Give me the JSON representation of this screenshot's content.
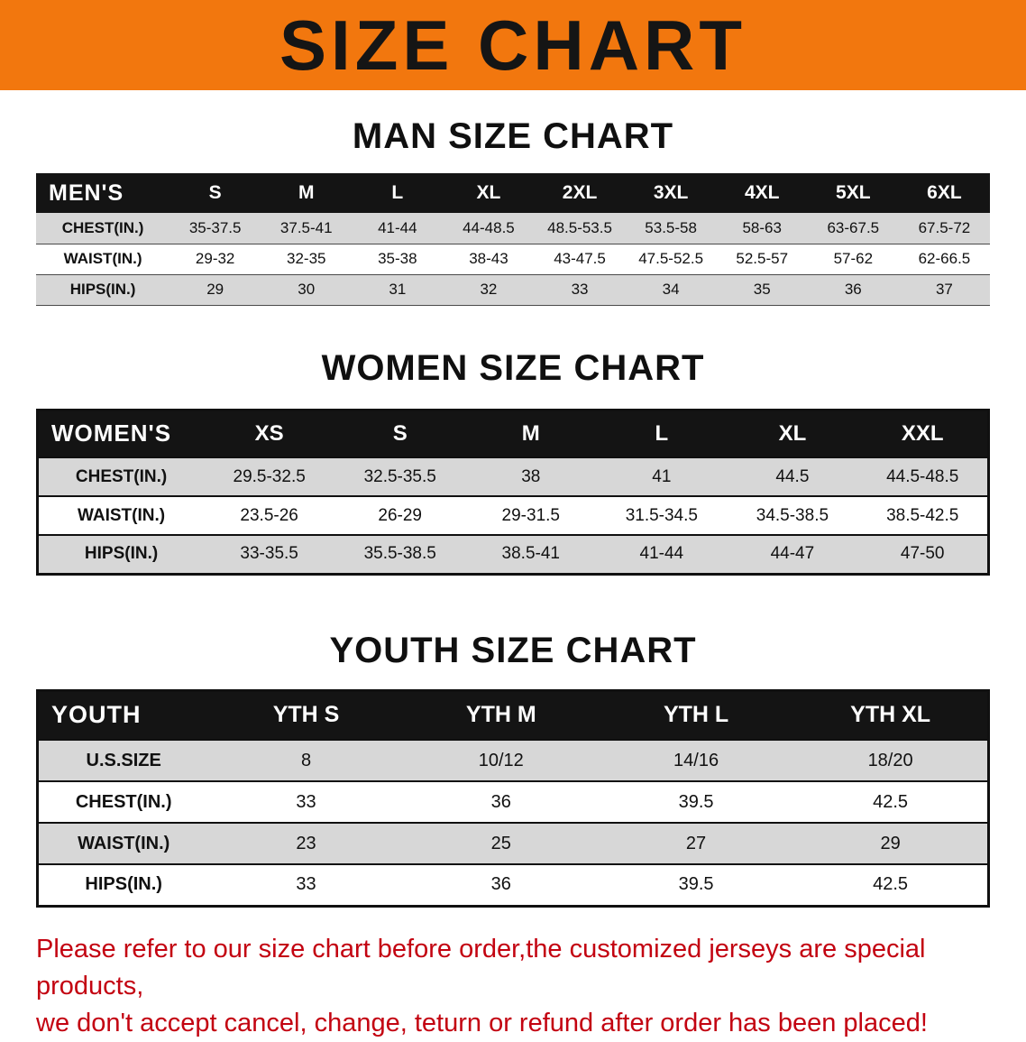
{
  "title": "SIZE CHART",
  "sections": [
    {
      "id": "men",
      "heading": "MAN SIZE CHART",
      "table": {
        "header": [
          "MEN'S",
          "S",
          "M",
          "L",
          "XL",
          "2XL",
          "3XL",
          "4XL",
          "5XL",
          "6XL"
        ],
        "rows": [
          [
            "CHEST(IN.)",
            "35-37.5",
            "37.5-41",
            "41-44",
            "44-48.5",
            "48.5-53.5",
            "53.5-58",
            "58-63",
            "63-67.5",
            "67.5-72"
          ],
          [
            "WAIST(IN.)",
            "29-32",
            "32-35",
            "35-38",
            "38-43",
            "43-47.5",
            "47.5-52.5",
            "52.5-57",
            "57-62",
            "62-66.5"
          ],
          [
            "HIPS(IN.)",
            "29",
            "30",
            "31",
            "32",
            "33",
            "34",
            "35",
            "36",
            "37"
          ]
        ]
      }
    },
    {
      "id": "women",
      "heading": "WOMEN SIZE CHART",
      "table": {
        "header": [
          "WOMEN'S",
          "XS",
          "S",
          "M",
          "L",
          "XL",
          "XXL"
        ],
        "rows": [
          [
            "CHEST(IN.)",
            "29.5-32.5",
            "32.5-35.5",
            "38",
            "41",
            "44.5",
            "44.5-48.5"
          ],
          [
            "WAIST(IN.)",
            "23.5-26",
            "26-29",
            "29-31.5",
            "31.5-34.5",
            "34.5-38.5",
            "38.5-42.5"
          ],
          [
            "HIPS(IN.)",
            "33-35.5",
            "35.5-38.5",
            "38.5-41",
            "41-44",
            "44-47",
            "47-50"
          ]
        ]
      }
    },
    {
      "id": "youth",
      "heading": "YOUTH SIZE CHART",
      "table": {
        "header": [
          "YOUTH",
          "YTH S",
          "YTH M",
          "YTH L",
          "YTH XL"
        ],
        "rows": [
          [
            "U.S.SIZE",
            "8",
            "10/12",
            "14/16",
            "18/20"
          ],
          [
            "CHEST(IN.)",
            "33",
            "36",
            "39.5",
            "42.5"
          ],
          [
            "WAIST(IN.)",
            "23",
            "25",
            "27",
            "29"
          ],
          [
            "HIPS(IN.)",
            "33",
            "36",
            "39.5",
            "42.5"
          ]
        ]
      }
    }
  ],
  "footer": {
    "lines": [
      "Please refer to our size chart before order,the customized jerseys are special products,",
      "we don't accept cancel, change, teturn or refund after order has been placed!"
    ]
  },
  "colors": {
    "banner_orange": "#F2770E",
    "header_black": "#141414",
    "row_gray": "#D7D7D7",
    "footer_red": "#C30311"
  }
}
